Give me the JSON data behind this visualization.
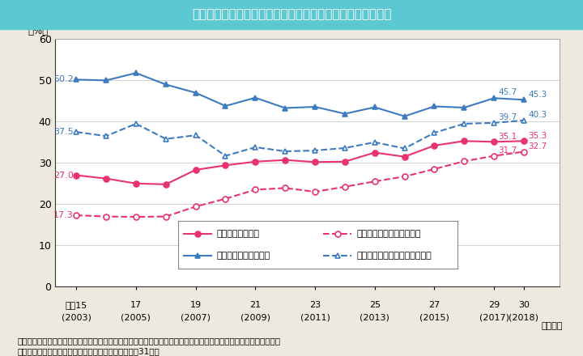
{
  "title": "Ｉ－１－７図　地方公務員採用者に占める女性の割合の推移",
  "title_bg_color": "#5BC8D2",
  "title_text_color": "#ffffff",
  "bg_color": "#EDE9DF",
  "plot_bg_color": "#ffffff",
  "ylabel": "（%）",
  "ylim": [
    0,
    60
  ],
  "yticks": [
    0,
    10,
    20,
    30,
    40,
    50,
    60
  ],
  "xlabel_note": "（年度）",
  "years": [
    2003,
    2004,
    2005,
    2006,
    2007,
    2008,
    2009,
    2010,
    2011,
    2012,
    2013,
    2014,
    2015,
    2016,
    2017,
    2018
  ],
  "xtick_positions": [
    2003,
    2005,
    2007,
    2009,
    2011,
    2013,
    2015,
    2017,
    2018
  ],
  "xtick_labels_top": [
    "平成15",
    "17",
    "19",
    "21",
    "23",
    "25",
    "27",
    "29",
    "30"
  ],
  "xtick_labels_bottom": [
    "(2003)",
    "(2005)",
    "(2007)",
    "(2009)",
    "(2011)",
    "(2013)",
    "(2015)",
    "(2017)",
    "(2018)"
  ],
  "series": {
    "todofuken_all": {
      "label": "都道府県（全体）",
      "color": "#E8336E",
      "linestyle": "solid",
      "marker": "o",
      "marker_filled": true,
      "values": [
        27.0,
        26.2,
        25.0,
        24.8,
        28.3,
        29.4,
        30.3,
        30.7,
        30.2,
        30.3,
        32.5,
        31.5,
        34.2,
        35.3,
        35.1,
        35.3
      ]
    },
    "todofuken_daigaku": {
      "label": "都道府県（大学卒業程度）",
      "color": "#E8336E",
      "linestyle": "dashed",
      "marker": "o",
      "marker_filled": false,
      "values": [
        17.3,
        17.0,
        16.9,
        17.0,
        19.4,
        21.3,
        23.5,
        23.9,
        23.0,
        24.2,
        25.5,
        26.7,
        28.5,
        30.4,
        31.7,
        32.7
      ]
    },
    "seirei_all": {
      "label": "政令指定都市（全体）",
      "color": "#3D7BBF",
      "linestyle": "solid",
      "marker": "^",
      "marker_filled": true,
      "values": [
        50.2,
        50.0,
        51.8,
        49.0,
        47.0,
        43.8,
        45.8,
        43.3,
        43.6,
        41.9,
        43.5,
        41.3,
        43.7,
        43.4,
        45.7,
        45.3
      ]
    },
    "seirei_daigaku": {
      "label": "政令指定都市（大学卒業程度）",
      "color": "#3D7BBF",
      "linestyle": "dashed",
      "marker": "^",
      "marker_filled": false,
      "values": [
        37.5,
        36.5,
        39.5,
        35.8,
        36.7,
        31.7,
        33.8,
        32.8,
        33.0,
        33.6,
        35.0,
        33.5,
        37.3,
        39.5,
        39.7,
        40.3
      ]
    }
  },
  "note_line1": "（備考）１．内閣府「地方公共団体における男女共同参画社会の形成又は女性に関する施策の推進状況」より作成。",
  "note_line2": "　　　　２．採用期間は，各年４月１日から翌年３月31日。"
}
